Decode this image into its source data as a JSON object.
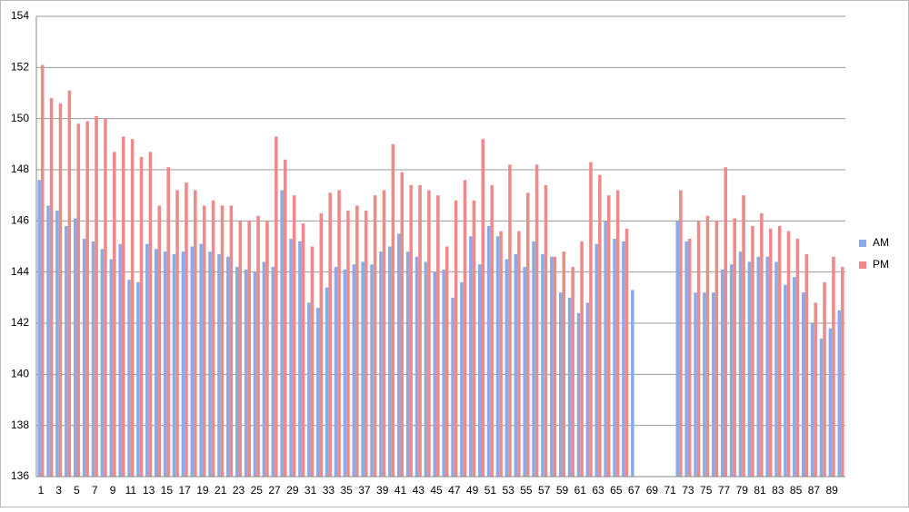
{
  "chart_data": {
    "type": "bar",
    "categories": [
      1,
      null,
      3,
      null,
      5,
      null,
      7,
      null,
      9,
      null,
      11,
      null,
      13,
      null,
      15,
      null,
      17,
      null,
      19,
      null,
      21,
      null,
      23,
      null,
      25,
      null,
      27,
      null,
      29,
      null,
      31,
      null,
      33,
      null,
      35,
      null,
      37,
      null,
      39,
      null,
      41,
      null,
      43,
      null,
      45,
      null,
      47,
      null,
      49,
      null,
      51,
      null,
      53,
      null,
      55,
      null,
      57,
      null,
      59,
      null,
      61,
      null,
      63,
      null,
      65,
      null,
      67,
      null,
      69,
      null,
      71,
      null,
      73,
      null,
      75,
      null,
      77,
      null,
      79,
      null,
      81,
      null,
      83,
      null,
      85,
      null,
      87,
      null,
      89,
      null
    ],
    "series": [
      {
        "name": "AM",
        "color": "#8aabe6",
        "values": [
          147.6,
          146.6,
          146.4,
          145.8,
          146.1,
          145.3,
          145.2,
          144.9,
          144.5,
          145.1,
          143.7,
          143.6,
          145.1,
          144.9,
          144.8,
          144.7,
          144.8,
          145.0,
          145.1,
          144.8,
          144.7,
          144.6,
          144.2,
          144.1,
          144.0,
          144.4,
          144.2,
          147.2,
          145.3,
          145.2,
          142.8,
          142.6,
          143.4,
          144.2,
          144.1,
          144.3,
          144.4,
          144.3,
          144.8,
          145.0,
          145.5,
          144.8,
          144.6,
          144.4,
          144.0,
          144.1,
          143.0,
          143.6,
          145.4,
          144.3,
          145.8,
          145.4,
          144.5,
          144.7,
          144.2,
          145.2,
          144.7,
          144.6,
          143.2,
          143.0,
          142.4,
          142.8,
          145.1,
          146.0,
          145.3,
          145.2,
          143.3,
          null,
          null,
          null,
          null,
          146.0,
          145.2,
          143.2,
          143.2,
          143.2,
          144.1,
          144.3,
          144.8,
          144.4,
          144.6,
          144.6,
          144.4,
          143.5,
          143.8,
          143.2,
          142.0,
          141.4,
          141.8,
          142.5
        ]
      },
      {
        "name": "PM",
        "color": "#ee8a8a",
        "values": [
          152.1,
          150.8,
          150.6,
          151.1,
          149.8,
          149.9,
          150.1,
          150.0,
          148.7,
          149.3,
          149.2,
          148.5,
          148.7,
          146.6,
          148.1,
          147.2,
          147.5,
          147.2,
          146.6,
          146.8,
          146.6,
          146.6,
          146.0,
          146.0,
          146.2,
          146.0,
          149.3,
          148.4,
          147.0,
          145.9,
          145.0,
          146.3,
          147.1,
          147.2,
          146.4,
          146.6,
          146.4,
          147.0,
          147.2,
          149.0,
          147.9,
          147.4,
          147.4,
          147.2,
          147.0,
          145.0,
          146.8,
          147.6,
          146.8,
          149.2,
          147.4,
          145.6,
          148.2,
          145.6,
          147.1,
          148.2,
          147.4,
          144.6,
          144.8,
          144.2,
          145.2,
          148.3,
          147.8,
          147.0,
          147.2,
          145.7,
          null,
          null,
          null,
          null,
          null,
          147.2,
          145.3,
          146.0,
          146.2,
          146.0,
          148.1,
          146.1,
          147.0,
          145.8,
          146.3,
          145.7,
          145.8,
          145.6,
          145.3,
          144.7,
          142.8,
          143.6,
          144.6,
          144.2
        ]
      }
    ],
    "ylim": [
      136,
      154
    ],
    "yticks": [
      136,
      138,
      140,
      142,
      144,
      146,
      148,
      150,
      152,
      154
    ],
    "grid": true,
    "legend": "right"
  }
}
